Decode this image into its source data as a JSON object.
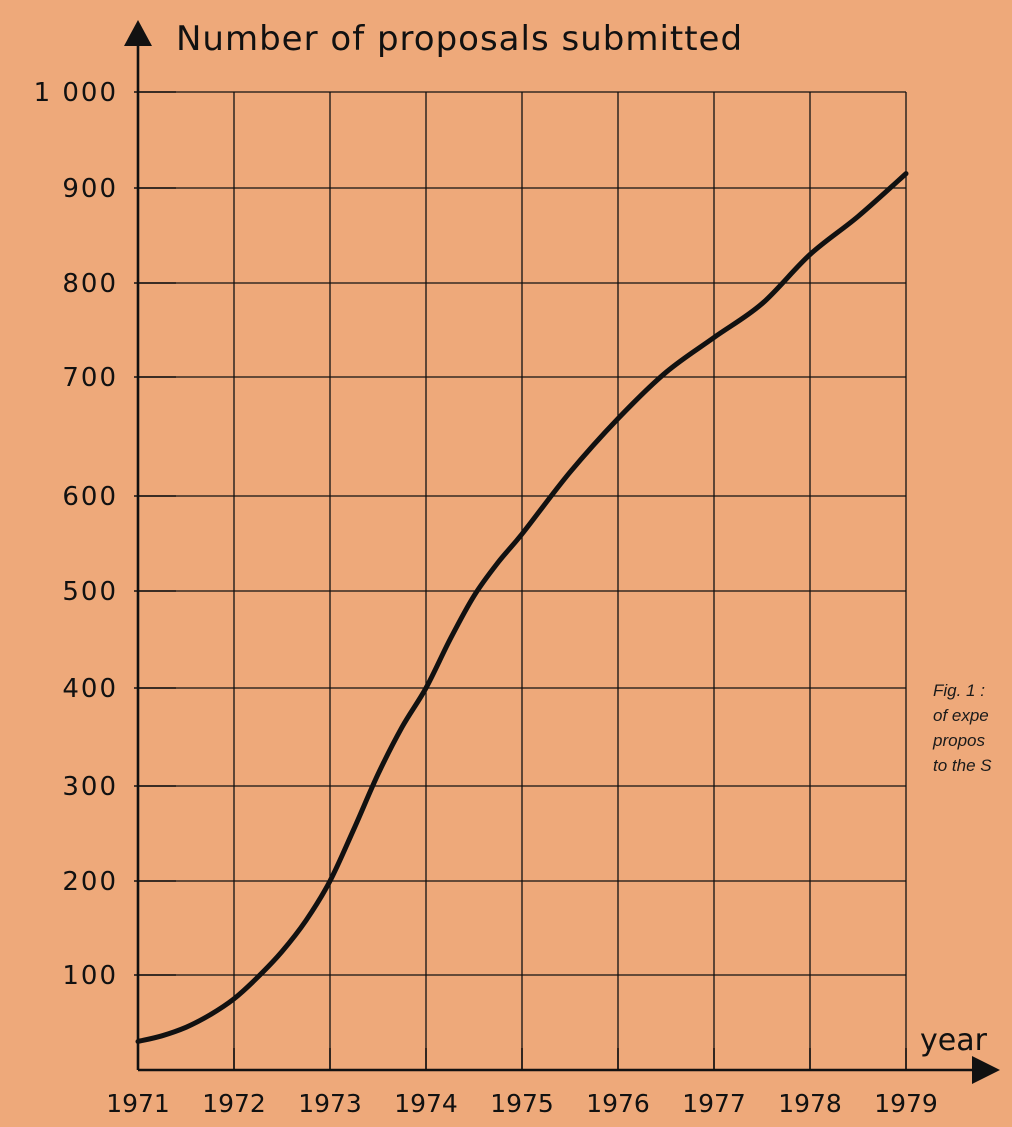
{
  "chart_data": {
    "type": "line",
    "ylabel": "Number of proposals submitted",
    "xlabel": "year",
    "x_ticks": [
      "1971",
      "1972",
      "1973",
      "1974",
      "1975",
      "1976",
      "1977",
      "1978",
      "1979"
    ],
    "y_ticks": [
      "100",
      "200",
      "300",
      "400",
      "500",
      "600",
      "700",
      "800",
      "900",
      "1 000"
    ],
    "xlim": [
      1971,
      1979
    ],
    "ylim": [
      0,
      1000
    ],
    "grid": true,
    "series": [
      {
        "x": [
          1971,
          1971.25,
          1971.5,
          1971.75,
          1972,
          1972.25,
          1972.5,
          1972.75,
          1973,
          1973.25,
          1973.5,
          1973.75,
          1974,
          1974.25,
          1974.5,
          1974.75,
          1975,
          1975.5,
          1976,
          1976.5,
          1977,
          1977.5,
          1978,
          1978.5,
          1979
        ],
        "y": [
          30,
          36,
          45,
          58,
          75,
          98,
          125,
          158,
          200,
          255,
          312,
          360,
          400,
          450,
          495,
          530,
          560,
          620,
          665,
          705,
          742,
          778,
          830,
          870,
          915
        ]
      }
    ],
    "caption_lines": [
      "Fig. 1 :",
      "of expe",
      "propos",
      "to the S"
    ],
    "colors": {
      "background": "#eea97a",
      "ink": "#111111"
    }
  }
}
